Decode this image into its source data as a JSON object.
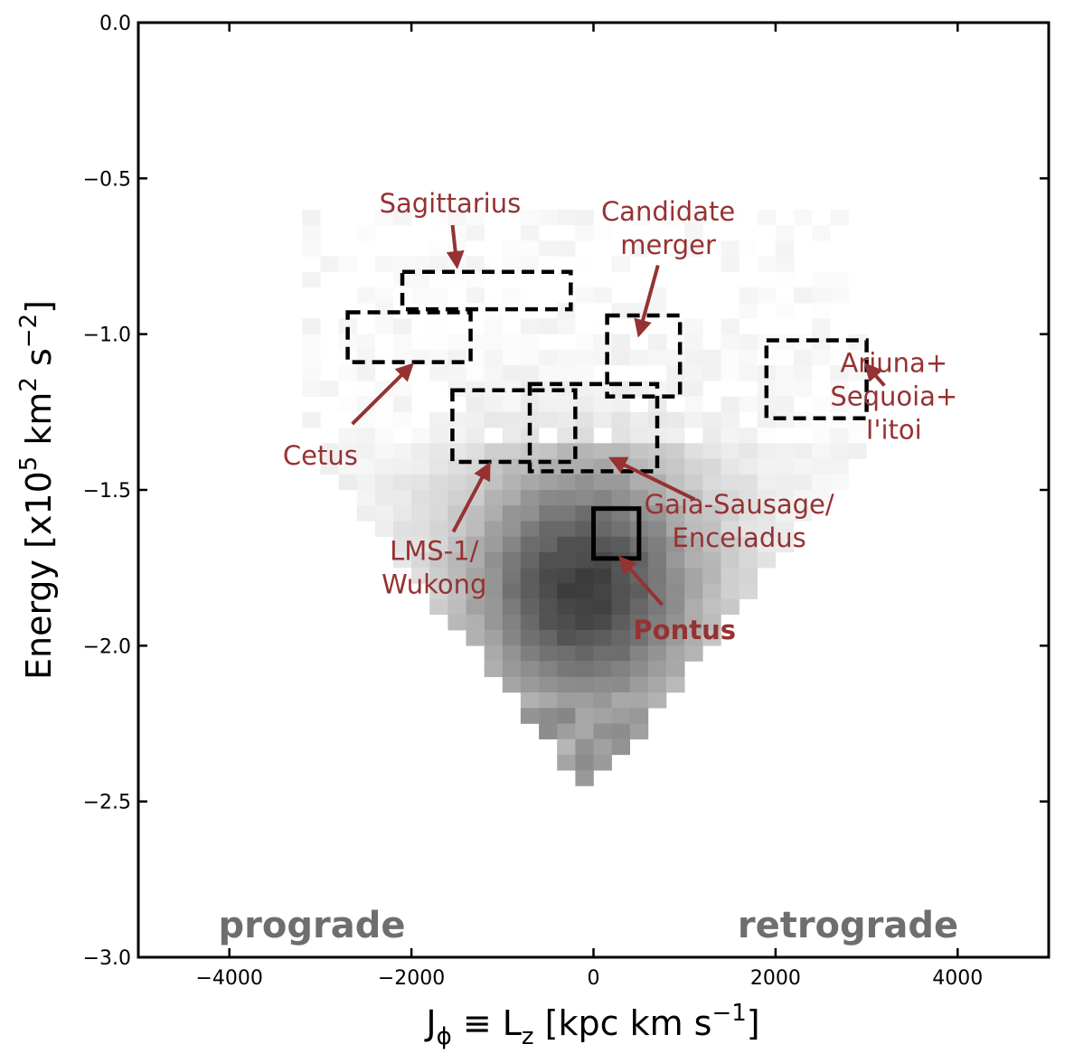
{
  "chart_data": {
    "type": "heatmap",
    "xlabel": "J_ϕ ≡ L_z [kpc km s^−1]",
    "ylabel": "Energy [x10^5 km^2 s^−2]",
    "xlim": [
      -5000,
      5000
    ],
    "ylim": [
      -3.0,
      0.0
    ],
    "x_ticks": [
      -4000,
      -2000,
      0,
      2000,
      4000
    ],
    "x_tick_labels": [
      "−4000",
      "−2000",
      "0",
      "2000",
      "4000"
    ],
    "y_ticks": [
      0.0,
      -0.5,
      -1.0,
      -1.5,
      -2.0,
      -2.5,
      -3.0
    ],
    "y_tick_labels": [
      "0.0",
      "−0.5",
      "−1.0",
      "−1.5",
      "−2.0",
      "−2.5",
      "−3.0"
    ],
    "colormap": "greys",
    "density_cells": [
      [
        -2.45,
        -2.5,
        -2.45,
        "peak_density",
        0.0
      ],
      [
        -2.15,
        2.15,
        2.15,
        "density_relative",
        0.0
      ]
    ],
    "regions": [
      {
        "name": "Sagittarius",
        "style": "dashed",
        "x": [
          -2100,
          -250
        ],
        "y": [
          -0.92,
          -0.8
        ]
      },
      {
        "name": "Cetus",
        "style": "dashed",
        "x": [
          -2700,
          -1350
        ],
        "y": [
          -1.09,
          -0.93
        ]
      },
      {
        "name": "Candidate merger",
        "style": "dashed",
        "x": [
          150,
          950
        ],
        "y": [
          -1.2,
          -0.94
        ]
      },
      {
        "name": "Arjuna+ Sequoia+ I'itoi",
        "style": "dashed",
        "x": [
          1900,
          3000
        ],
        "y": [
          -1.27,
          -1.02
        ]
      },
      {
        "name": "LMS-1/ Wukong",
        "style": "dashed",
        "x": [
          -1550,
          -200
        ],
        "y": [
          -1.41,
          -1.18
        ]
      },
      {
        "name": "Gaia-Sausage/ Enceladus",
        "style": "dashed",
        "x": [
          -700,
          700
        ],
        "y": [
          -1.44,
          -1.16
        ]
      },
      {
        "name": "Pontus",
        "style": "solid",
        "x": [
          0,
          500
        ],
        "y": [
          -1.72,
          -1.56
        ]
      }
    ],
    "annotations": [
      {
        "lines": [
          "Sagittarius"
        ],
        "bold": false,
        "text_at": [
          -1575,
          -0.58
        ],
        "arrow_to": [
          -1500,
          -0.78
        ]
      },
      {
        "lines": [
          "Candidate",
          "merger"
        ],
        "bold": false,
        "text_at": [
          820,
          -0.66
        ],
        "arrow_to": [
          500,
          -1.0
        ]
      },
      {
        "lines": [
          "Arjuna+",
          "Sequoia+",
          "I'itoi"
        ],
        "bold": false,
        "text_at": [
          3300,
          -1.2
        ],
        "arrow_to": [
          3000,
          -1.1
        ]
      },
      {
        "lines": [
          "Cetus"
        ],
        "bold": false,
        "text_at": [
          -3000,
          -1.39
        ],
        "arrow_to": [
          -2000,
          -1.1
        ]
      },
      {
        "lines": [
          "LMS-1/",
          "Wukong"
        ],
        "bold": false,
        "text_at": [
          -1750,
          -1.75
        ],
        "arrow_to": [
          -1150,
          -1.42
        ]
      },
      {
        "lines": [
          "Gaia-Sausage/",
          "Enceladus"
        ],
        "bold": false,
        "text_at": [
          1600,
          -1.6
        ],
        "arrow_to": [
          200,
          -1.4
        ]
      },
      {
        "lines": [
          "Pontus"
        ],
        "bold": true,
        "text_at": [
          1000,
          -1.95
        ],
        "arrow_to": [
          300,
          -1.72
        ]
      }
    ],
    "direction_labels": {
      "left": "prograde",
      "right": "retrograde"
    },
    "colors": {
      "annotation": "#963232",
      "direction_label": "#6e6e6e",
      "frame": "#000000"
    }
  }
}
